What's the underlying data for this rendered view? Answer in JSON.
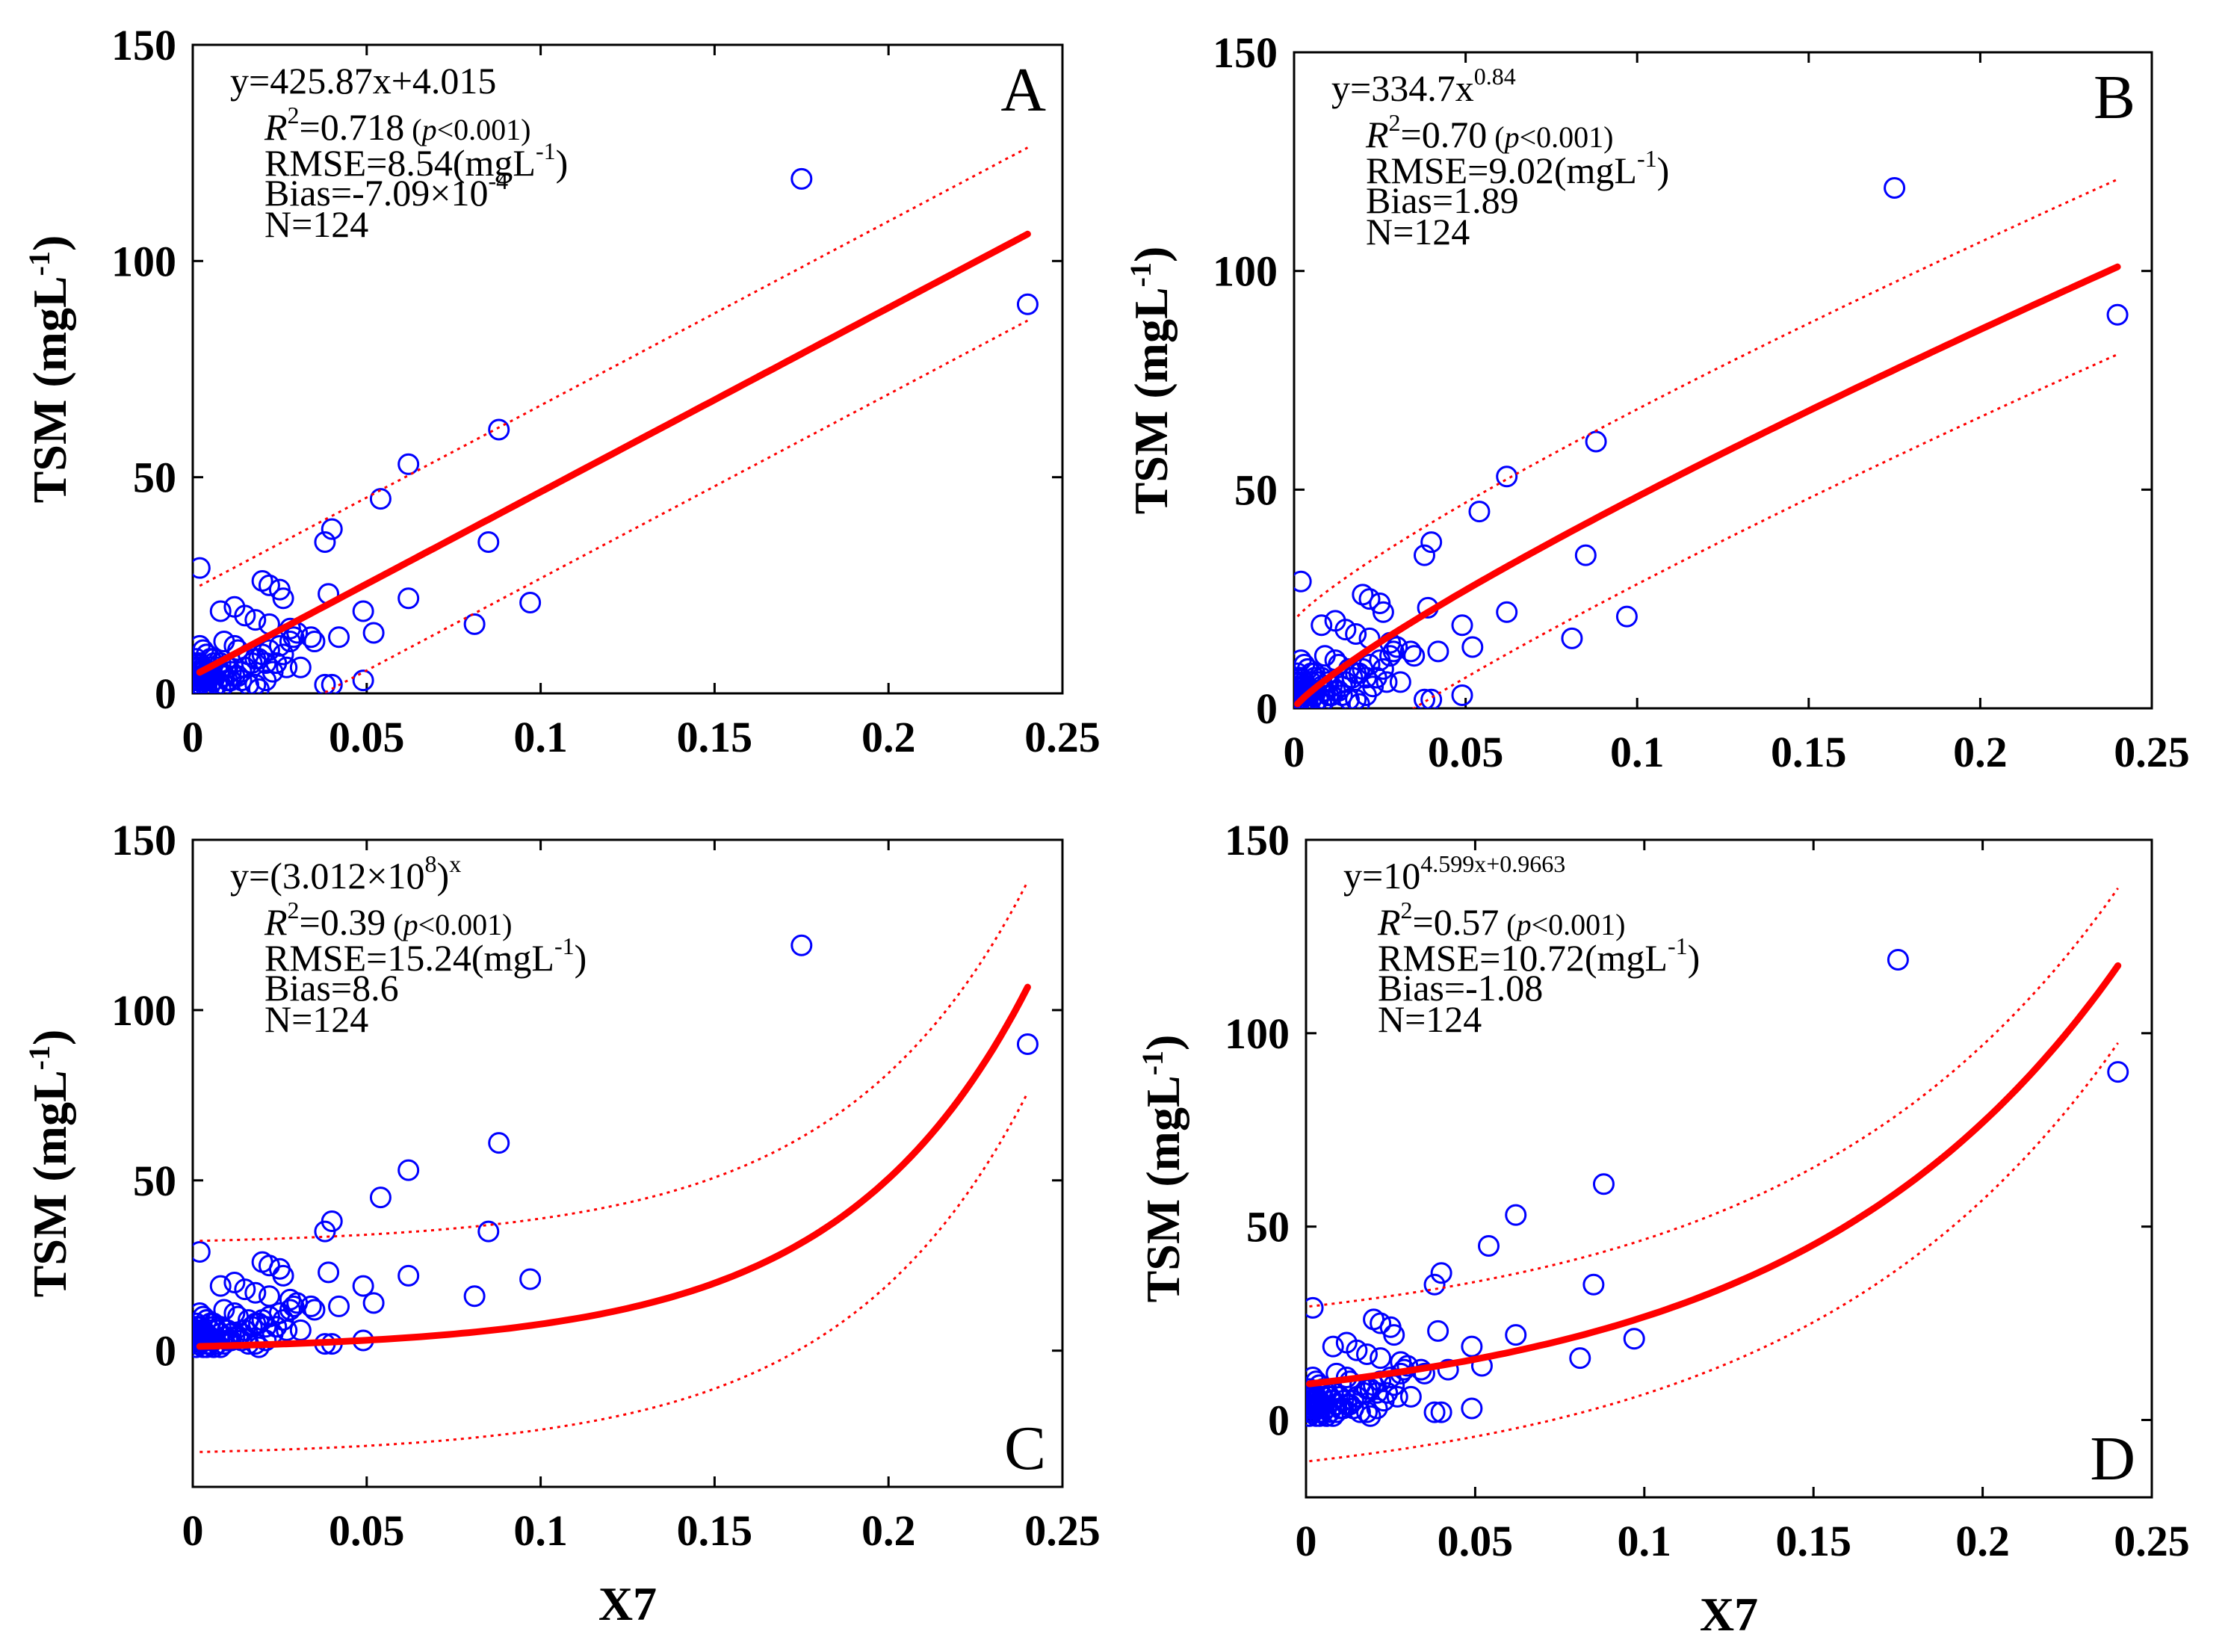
{
  "chart_data": [
    {
      "type": "scatter",
      "panel": "A",
      "model": "linear",
      "equation": "y=425.87x+4.015",
      "r2": "0.718",
      "p_text": "(p<0.001)",
      "rmse": "RMSE=8.54(mgL-1)",
      "bias": "Bias=-7.09×10-4",
      "n": "N=124",
      "ylabel": "TSM (mgL-1)",
      "xlabel": "",
      "xlim": [
        0,
        0.25
      ],
      "ylim": [
        0,
        150
      ],
      "xticks": [
        0,
        0.05,
        0.1,
        0.15,
        0.2,
        0.25
      ],
      "xtick_labels": [
        "0",
        "0.05",
        "0.1",
        "0.15",
        "0.2",
        "0.25"
      ],
      "yticks": [
        0,
        50,
        100,
        150
      ],
      "ytick_labels": [
        "0",
        "50",
        "100",
        "150"
      ],
      "fit": {
        "kind": "linear",
        "a": 425.87,
        "b": 4.015
      },
      "band": {
        "type": "add",
        "width": 20
      },
      "fit_x_range": [
        0.002,
        0.24
      ]
    },
    {
      "type": "scatter",
      "panel": "B",
      "model": "power",
      "equation": "y=334.7x0.84",
      "r2": "0.70",
      "p_text": "(p<0.001)",
      "rmse": "RMSE=9.02(mgL-1)",
      "bias": "Bias=1.89",
      "n": "N=124",
      "ylabel": "TSM (mgL-1)",
      "xlabel": "",
      "xlim": [
        0,
        0.25
      ],
      "ylim": [
        0,
        150
      ],
      "xticks": [
        0,
        0.05,
        0.1,
        0.15,
        0.2,
        0.25
      ],
      "xtick_labels": [
        "0",
        "0.05",
        "0.1",
        "0.15",
        "0.2",
        "0.25"
      ],
      "yticks": [
        0,
        50,
        100,
        150
      ],
      "ytick_labels": [
        "0",
        "50",
        "100",
        "150"
      ],
      "fit": {
        "kind": "power",
        "a": 334.7,
        "b": 0.84
      },
      "band": {
        "type": "add",
        "width": 20
      },
      "fit_x_range": [
        0.001,
        0.24
      ]
    },
    {
      "type": "scatter",
      "panel": "C",
      "model": "exponential",
      "equation": "y=(3.012×108)x",
      "r2": "0.39",
      "p_text": "(p<0.001)",
      "rmse": "RMSE=15.24(mgL-1)",
      "bias": "Bias=8.6",
      "n": "N=124",
      "ylabel": "TSM (mgL-1)",
      "xlabel": "X7",
      "xlim": [
        0,
        0.25
      ],
      "ylim": [
        -40,
        150
      ],
      "xticks": [
        0,
        0.05,
        0.1,
        0.15,
        0.2,
        0.25
      ],
      "xtick_labels": [
        "0",
        "0.05",
        "0.1",
        "0.15",
        "0.2",
        "0.25"
      ],
      "yticks": [
        0,
        50,
        100,
        150
      ],
      "ytick_labels": [
        "0",
        "50",
        "100",
        "150"
      ],
      "fit": {
        "kind": "exp",
        "a": 1.2,
        "b": 18.7
      },
      "band": {
        "type": "add",
        "width": 31
      },
      "fit_x_range": [
        0.002,
        0.24
      ]
    },
    {
      "type": "scatter",
      "panel": "D",
      "model": "exponential",
      "equation": "y=104.599x+0.9663",
      "r2": "0.57",
      "p_text": "(p<0.001)",
      "rmse": "RMSE=10.72(mgL-1)",
      "bias": "Bias=-1.08",
      "n": "N=124",
      "ylabel": "TSM (mgL-1)",
      "xlabel": "X7",
      "xlim": [
        0,
        0.25
      ],
      "ylim": [
        -20,
        150
      ],
      "xticks": [
        0,
        0.05,
        0.1,
        0.15,
        0.2,
        0.25
      ],
      "xtick_labels": [
        "0",
        "0.05",
        "0.1",
        "0.15",
        "0.2",
        "0.25"
      ],
      "yticks": [
        0,
        50,
        100,
        150
      ],
      "ytick_labels": [
        "0",
        "50",
        "100",
        "150"
      ],
      "fit": {
        "kind": "exp",
        "a": 9.25,
        "b": 10.59
      },
      "band": {
        "type": "add",
        "width": 20
      },
      "fit_x_range": [
        0.001,
        0.24
      ]
    }
  ],
  "scatter_points": {
    "x": [
      0.175,
      0.24,
      0.088,
      0.062,
      0.054,
      0.085,
      0.097,
      0.081,
      0.04,
      0.038,
      0.002,
      0.062,
      0.049,
      0.052,
      0.049,
      0.038,
      0.04,
      0.039,
      0.042,
      0.02,
      0.022,
      0.025,
      0.026,
      0.012,
      0.008,
      0.015,
      0.018,
      0.022,
      0.028,
      0.03,
      0.034,
      0.035,
      0.009,
      0.012,
      0.013,
      0.016,
      0.019,
      0.021,
      0.024,
      0.027,
      0.031,
      0.004,
      0.006,
      0.008,
      0.01,
      0.011,
      0.013,
      0.014,
      0.016,
      0.018,
      0.019,
      0.021,
      0.023,
      0.024,
      0.026,
      0.002,
      0.003,
      0.004,
      0.005,
      0.006,
      0.007,
      0.008,
      0.009,
      0.01,
      0.011,
      0.012,
      0.014,
      0.015,
      0.017,
      0.018,
      0.02,
      0.022,
      0.025,
      0.028,
      0.029,
      0.001,
      0.002,
      0.003,
      0.004,
      0.005,
      0.006,
      0.007,
      0.008,
      0.009,
      0.01,
      0.001,
      0.002,
      0.003,
      0.004,
      0.005,
      0.006,
      0.001,
      0.002,
      0.003,
      0.004,
      0.001,
      0.002,
      0.003,
      0.001,
      0.002,
      0.003,
      0.001,
      0.002,
      0.004,
      0.001,
      0.002,
      0.003,
      0.001,
      0.002,
      0.001,
      0.002,
      0.003,
      0.004,
      0.001,
      0.002,
      0.003,
      0.005,
      0.001,
      0.002,
      0.003,
      0.001,
      0.002,
      0.001,
      0.002
    ],
    "y": [
      119,
      90,
      61,
      53,
      45,
      35,
      21,
      16,
      38,
      35,
      29,
      22,
      19,
      14,
      3,
      2,
      2,
      23,
      13,
      26,
      25,
      24,
      22,
      20,
      19,
      18,
      17,
      16,
      15,
      14,
      13,
      12,
      12,
      11,
      10,
      9,
      8,
      7,
      7,
      6,
      6,
      9,
      8,
      7,
      6,
      5,
      4,
      3,
      2,
      2,
      1,
      3,
      5,
      7,
      9,
      11,
      10,
      9,
      8,
      7,
      6,
      5,
      4,
      3,
      3,
      4,
      5,
      6,
      7,
      8,
      9,
      10,
      11,
      12,
      13,
      8,
      7,
      6,
      5,
      4,
      3,
      2,
      1,
      2,
      3,
      6,
      5,
      4,
      3,
      2,
      1,
      7,
      6,
      5,
      4,
      5,
      4,
      3,
      6,
      5,
      4,
      3,
      2,
      1,
      2,
      3,
      4,
      5,
      4,
      3,
      2,
      1,
      2,
      3,
      4,
      5,
      6,
      1,
      2,
      3,
      4,
      5,
      6,
      7
    ]
  },
  "layout": {
    "background": "#ffffff",
    "axis_color": "#000000",
    "fit_color": "#ff0000",
    "band_color": "#ff0000",
    "marker_color": "#0000ff"
  }
}
